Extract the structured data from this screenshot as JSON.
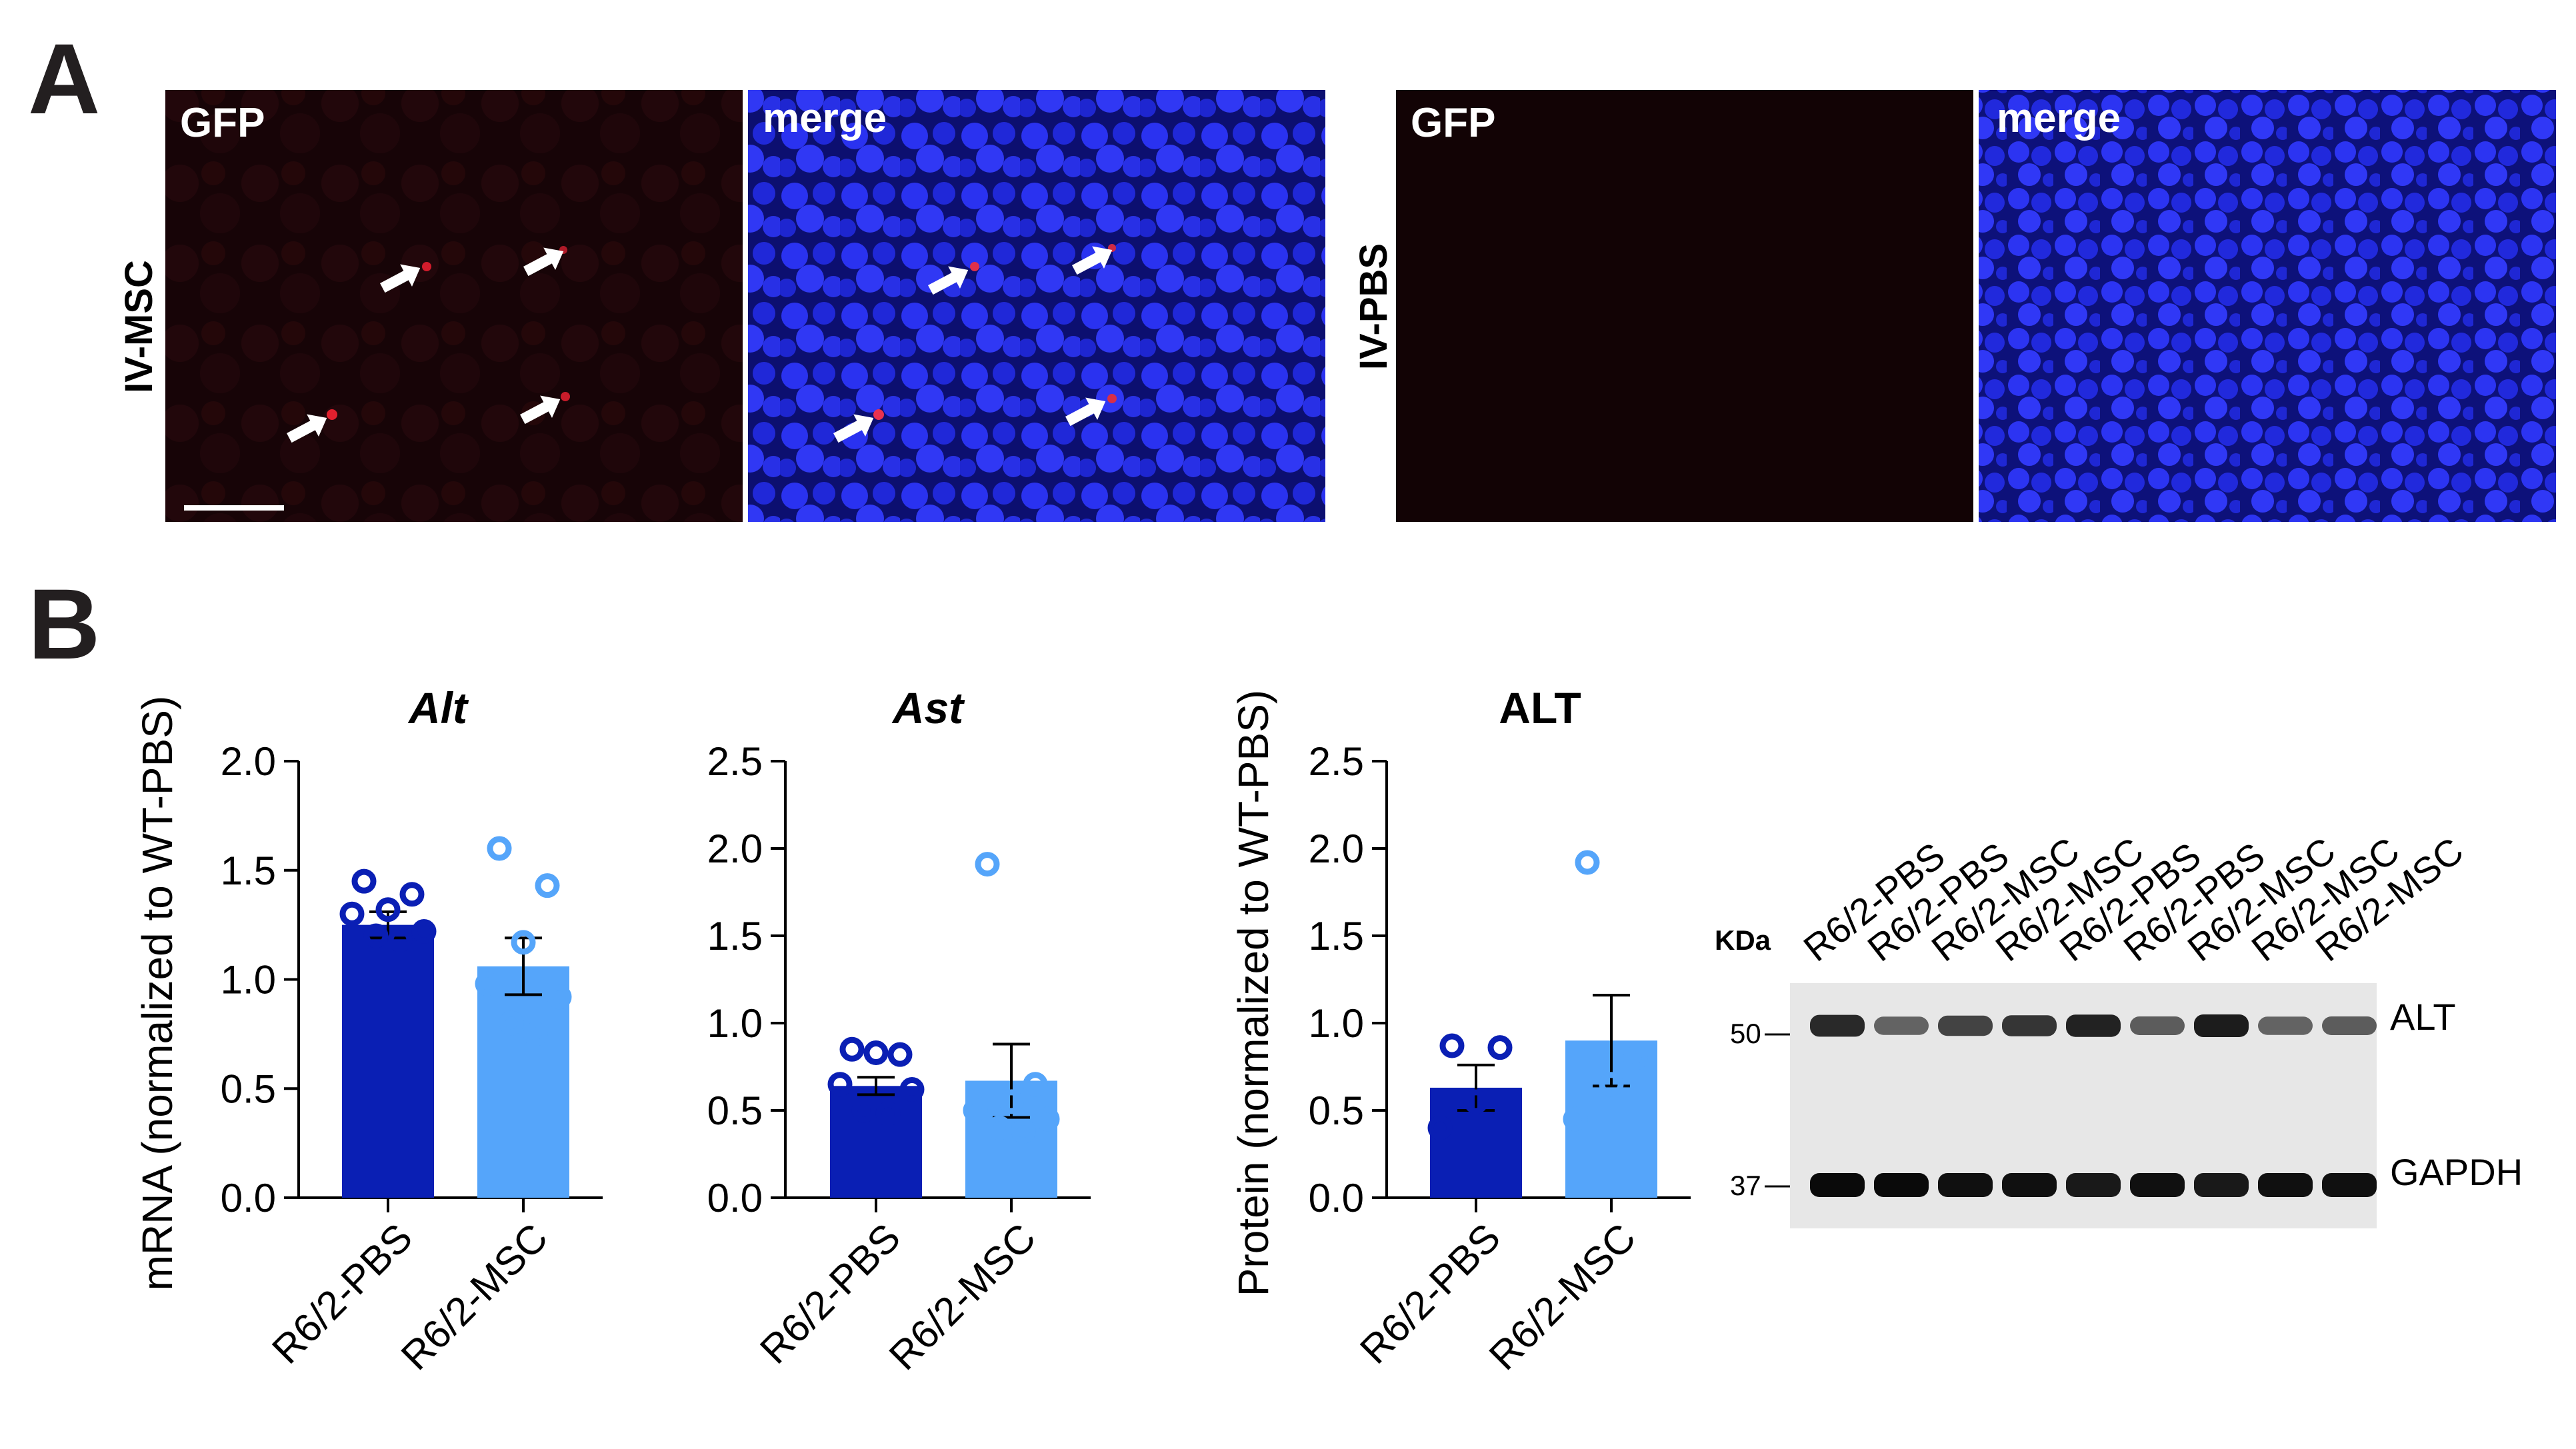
{
  "panel_a": {
    "letter": "A",
    "groups": [
      {
        "row_label": "IV-MSC",
        "images": [
          {
            "label": "GFP"
          },
          {
            "label": "merge"
          }
        ]
      },
      {
        "row_label": "IV-PBS",
        "images": [
          {
            "label": "GFP"
          },
          {
            "label": "merge"
          }
        ]
      }
    ]
  },
  "panel_b": {
    "letter": "B",
    "mrna_ylabel": "mRNA (normalized to WT-PBS)",
    "protein_ylabel": "Protein (normalized to WT-PBS)"
  },
  "colors": {
    "pbs": "#0a1fb4",
    "msc": "#55a5fa",
    "gfp_bg": "#160306",
    "merge_bg": "#1a1ec4"
  },
  "chart_data": [
    {
      "type": "bar",
      "title": "Alt",
      "title_italic": true,
      "categories": [
        "R6/2-PBS",
        "R6/2-MSC"
      ],
      "values": [
        1.25,
        1.06
      ],
      "sem": [
        0.06,
        0.13
      ],
      "points": [
        [
          1.45,
          1.39,
          1.32,
          1.3,
          1.22,
          1.2,
          1.18
        ],
        [
          1.6,
          1.43,
          1.17,
          0.98,
          0.92,
          0.8,
          0.75
        ]
      ],
      "ylim": [
        0,
        2.0
      ],
      "yticks": [
        "0.0",
        "0.5",
        "1.0",
        "1.5",
        "2.0"
      ],
      "ylabel": "mRNA (normalized to WT-PBS)"
    },
    {
      "type": "bar",
      "title": "Ast",
      "title_italic": true,
      "categories": [
        "R6/2-PBS",
        "R6/2-MSC"
      ],
      "values": [
        0.64,
        0.67
      ],
      "sem": [
        0.05,
        0.21
      ],
      "points": [
        [
          0.85,
          0.82,
          0.83,
          0.65,
          0.62,
          0.5,
          0.48
        ],
        [
          1.91,
          0.65,
          0.55,
          0.5,
          0.45,
          0.4,
          0.38
        ]
      ],
      "ylim": [
        0,
        2.5
      ],
      "yticks": [
        "0.0",
        "0.5",
        "1.0",
        "1.5",
        "2.0",
        "2.5"
      ],
      "ylabel": ""
    },
    {
      "type": "bar",
      "title": "ALT",
      "title_italic": false,
      "categories": [
        "R6/2-PBS",
        "R6/2-MSC"
      ],
      "values": [
        0.63,
        0.9
      ],
      "sem": [
        0.13,
        0.26
      ],
      "points": [
        [
          0.87,
          0.86,
          0.55,
          0.4
        ],
        [
          1.92,
          0.8,
          0.65,
          0.45
        ]
      ],
      "ylim": [
        0,
        2.5
      ],
      "yticks": [
        "0.0",
        "0.5",
        "1.0",
        "1.5",
        "2.0",
        "2.5"
      ],
      "ylabel": "Protein (normalized to WT-PBS)"
    }
  ],
  "blot": {
    "kda_label": "KDa",
    "lanes": [
      "R6/2-PBS",
      "R6/2-PBS",
      "R6/2-MSC",
      "R6/2-MSC",
      "R6/2-PBS",
      "R6/2-PBS",
      "R6/2-MSC",
      "R6/2-MSC",
      "R6/2-MSC"
    ],
    "markers": [
      "50",
      "37"
    ],
    "bands": [
      "ALT",
      "GAPDH"
    ]
  }
}
